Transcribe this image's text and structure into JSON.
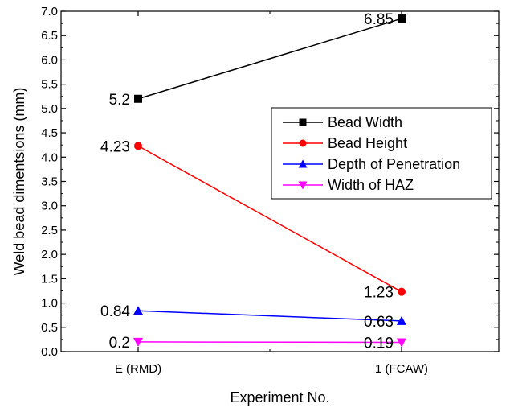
{
  "chart_data": {
    "type": "line",
    "title": "",
    "xlabel": "Experiment No.",
    "ylabel": "Weld bead dimentsions (mm)",
    "categories": [
      "E (RMD)",
      "1 (FCAW)"
    ],
    "ylim": [
      0.0,
      7.0
    ],
    "ytick_labels": [
      "0.0",
      "0.5",
      "1.0",
      "1.5",
      "2.0",
      "2.5",
      "3.0",
      "3.5",
      "4.0",
      "4.5",
      "5.0",
      "5.5",
      "6.0",
      "6.5",
      "7.0"
    ],
    "grid": false,
    "legend_position": "right",
    "series": [
      {
        "name": "Bead Width",
        "values": [
          5.2,
          6.85
        ],
        "labels": [
          "5.2",
          "6.85"
        ],
        "color": "#000000",
        "marker": "square"
      },
      {
        "name": "Bead Height",
        "values": [
          4.23,
          1.23
        ],
        "labels": [
          "4.23",
          "1.23"
        ],
        "color": "#ff0000",
        "marker": "circle"
      },
      {
        "name": "Depth of Penetration",
        "values": [
          0.84,
          0.63
        ],
        "labels": [
          "0.84",
          "0.63"
        ],
        "color": "#0000ff",
        "marker": "triangle-up"
      },
      {
        "name": "Width of HAZ",
        "values": [
          0.2,
          0.19
        ],
        "labels": [
          "0.2",
          "0.19"
        ],
        "color": "#ff00ff",
        "marker": "triangle-down"
      }
    ]
  }
}
